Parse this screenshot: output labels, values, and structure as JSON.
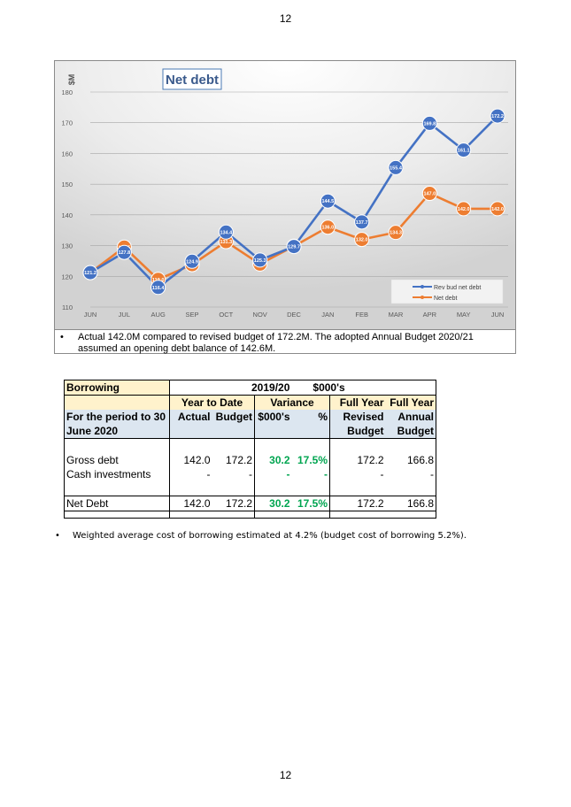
{
  "page": {
    "number_top": "12",
    "number_bottom": "12"
  },
  "chart_data": {
    "type": "line",
    "title": "Net debt",
    "ylabel": "$M",
    "xlabel": "",
    "ylim": [
      110,
      180
    ],
    "yticks": [
      110,
      120,
      130,
      140,
      150,
      160,
      170,
      180
    ],
    "categories": [
      "JUN",
      "JUL",
      "AUG",
      "SEP",
      "OCT",
      "NOV",
      "DEC",
      "JAN",
      "FEB",
      "MAR",
      "APR",
      "MAY",
      "JUN"
    ],
    "legend_position": "bottom-right",
    "series": [
      {
        "name": "Rev bud net debt",
        "color": "#4472c4",
        "values": [
          121.2,
          127.8,
          116.4,
          124.9,
          134.4,
          125.3,
          129.7,
          144.5,
          137.7,
          155.4,
          169.8,
          161.1,
          172.2
        ],
        "labels": [
          "121.2",
          "127.8",
          "116.4",
          "124.9",
          "134.4",
          "125.3",
          "129.7",
          "144.5",
          "137.7",
          "155.4",
          "169.8",
          "161.1",
          "172.2"
        ]
      },
      {
        "name": "Net debt",
        "color": "#ed7d31",
        "values": [
          121.2,
          129.5,
          119.0,
          123.8,
          131.3,
          124.0,
          129.8,
          136.0,
          132.0,
          134.3,
          147.0,
          142.0,
          142.0
        ],
        "labels": [
          "121.2",
          "129.5",
          "119.0",
          "123.8",
          "131.3",
          "124.0",
          "129.8",
          "136.0",
          "132.0",
          "134.3",
          "147.0",
          "142.0",
          "142.0"
        ]
      }
    ]
  },
  "bullet1": {
    "dot": "•",
    "text": "Actual 142.0M compared to revised budget of 172.2M.  The adopted Annual Budget 2020/21 assumed an opening debt balance of 142.6M."
  },
  "table": {
    "title": "Borrowing",
    "year": "2019/20",
    "units": "$000's",
    "group_ytd": "Year to Date",
    "group_var": "Variance",
    "fy1_l1": "Full Year",
    "fy1_l2": "Revised",
    "fy1_l3": "Budget",
    "fy2_l1": "Full Year",
    "fy2_l2": "Annual",
    "fy2_l3": "Budget",
    "period_l1": "For the period to 30",
    "period_l2": "June 2020",
    "col_actual": "Actual",
    "col_budget": "Budget",
    "col_var": "$000's",
    "col_pct": "%",
    "rows": [
      {
        "label": "Gross debt",
        "actual": "142.0",
        "budget": "172.2",
        "var": "30.2",
        "pct": "17.5%",
        "rev": "172.2",
        "annual": "166.8"
      },
      {
        "label": "Cash investments",
        "actual": "-",
        "budget": "-",
        "var": "-",
        "pct": "-",
        "rev": "-",
        "annual": "-"
      }
    ],
    "total": {
      "label": "Net Debt",
      "actual": "142.0",
      "budget": "172.2",
      "var": "30.2",
      "pct": "17.5%",
      "rev": "172.2",
      "annual": "166.8"
    }
  },
  "bullet2": {
    "dot": "•",
    "text": "Weighted average cost of borrowing estimated at 4.2% (budget cost of borrowing 5.2%)."
  }
}
